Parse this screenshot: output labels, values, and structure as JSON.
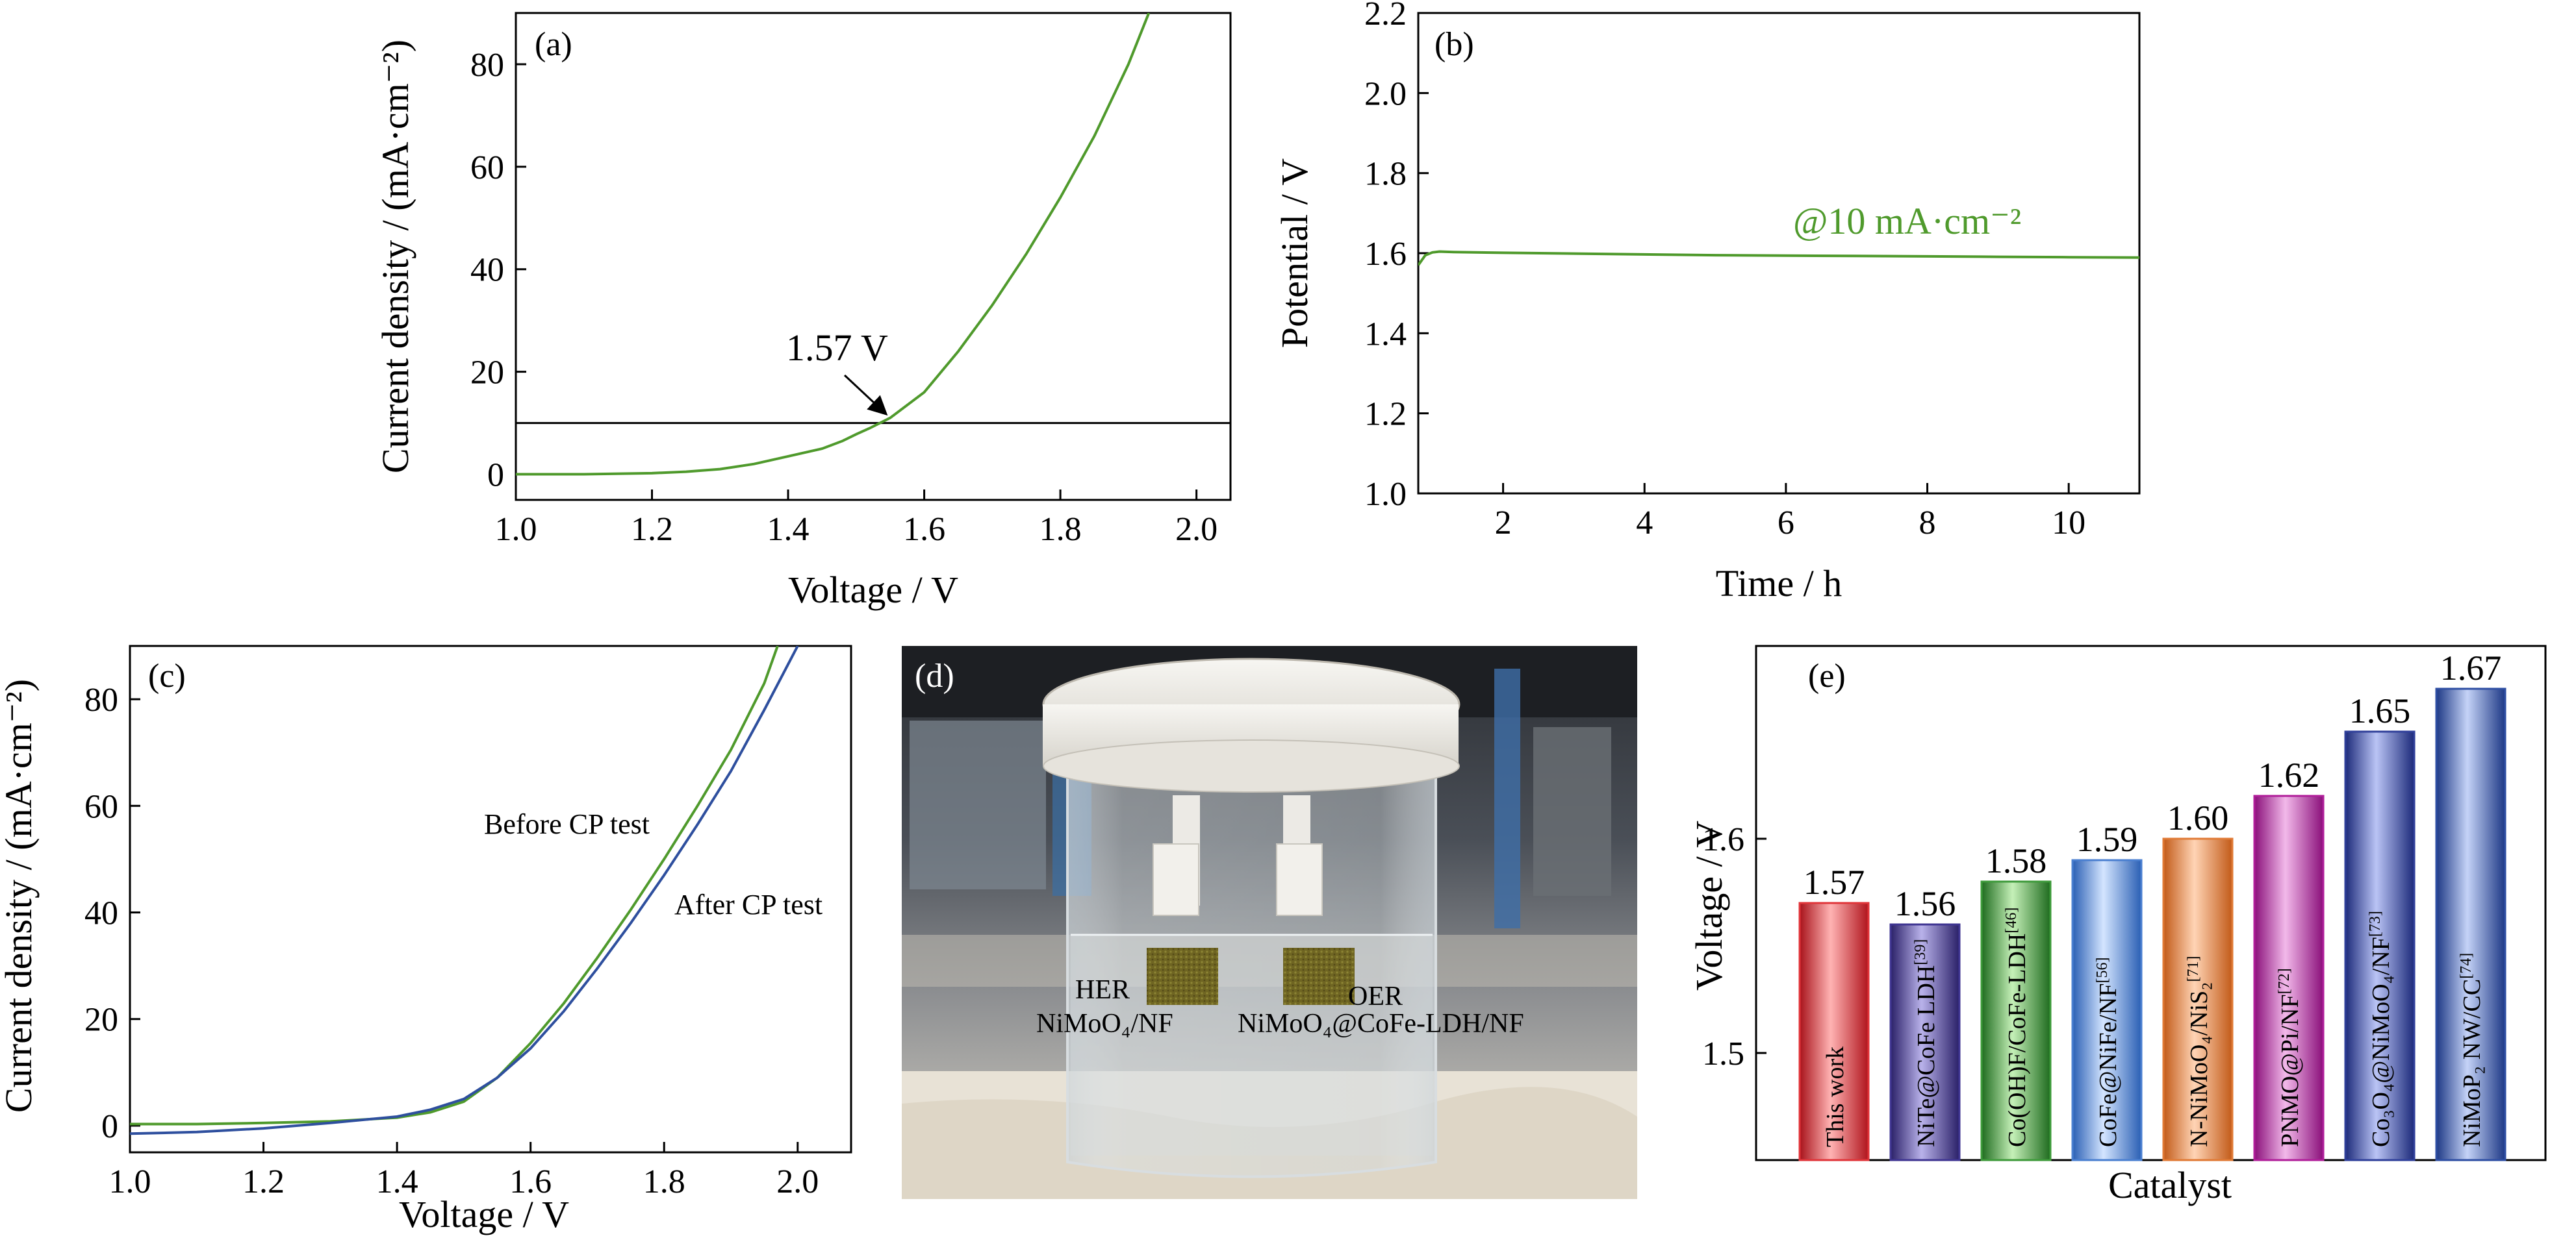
{
  "colors": {
    "green": "#4f9a2c",
    "blue": "#2e4f9e",
    "axis": "#000000"
  },
  "chart_data": [
    {
      "panel": "(a)",
      "type": "line",
      "xlabel": "Voltage / V",
      "ylabel": "Current density / (mA·cm⁻²)",
      "xlim": [
        1.0,
        2.05
      ],
      "ylim": [
        -5,
        90
      ],
      "xticks": [
        "1.0",
        "1.2",
        "1.4",
        "1.6",
        "1.8",
        "2.0"
      ],
      "yticks": [
        "0",
        "20",
        "40",
        "60",
        "80"
      ],
      "annotation": "1.57 V",
      "reference_line_y": 10,
      "series": [
        {
          "color": "#4f9a2c",
          "x": [
            1.0,
            1.1,
            1.2,
            1.25,
            1.3,
            1.35,
            1.4,
            1.45,
            1.48,
            1.5,
            1.52,
            1.55,
            1.6,
            1.65,
            1.7,
            1.75,
            1.8,
            1.85,
            1.9,
            1.93
          ],
          "y": [
            0,
            0,
            0.2,
            0.5,
            1.0,
            2.0,
            3.5,
            5.0,
            6.5,
            7.8,
            9.0,
            11.0,
            16.0,
            24.0,
            33.0,
            43.0,
            54.0,
            66.0,
            80.0,
            90.0
          ]
        }
      ]
    },
    {
      "panel": "(b)",
      "type": "line",
      "xlabel": "Time / h",
      "ylabel": "Potential / V",
      "xlim": [
        0.8,
        11
      ],
      "ylim": [
        1.0,
        2.2
      ],
      "xticks": [
        "2",
        "4",
        "6",
        "8",
        "10"
      ],
      "yticks": [
        "1.0",
        "1.2",
        "1.4",
        "1.6",
        "1.8",
        "2.0",
        "2.2"
      ],
      "annotation": "@10 mA·cm⁻²",
      "series": [
        {
          "color": "#4f9a2c",
          "x": [
            0.8,
            0.9,
            1.0,
            1.1,
            1.3,
            2,
            3,
            4,
            5,
            6,
            7,
            8,
            9,
            10,
            11
          ],
          "y": [
            1.57,
            1.595,
            1.602,
            1.604,
            1.603,
            1.601,
            1.599,
            1.597,
            1.595,
            1.594,
            1.593,
            1.592,
            1.591,
            1.59,
            1.589
          ]
        }
      ]
    },
    {
      "panel": "(c)",
      "type": "line",
      "xlabel": "Voltage / V",
      "ylabel": "Current density / (mA·cm⁻²)",
      "xlim": [
        1.0,
        2.08
      ],
      "ylim": [
        -5,
        90
      ],
      "xticks": [
        "1.0",
        "1.2",
        "1.4",
        "1.6",
        "1.8",
        "2.0"
      ],
      "yticks": [
        "0",
        "20",
        "40",
        "60",
        "80"
      ],
      "series": [
        {
          "name": "Before CP test",
          "color": "#4f9a2c",
          "x": [
            1.0,
            1.1,
            1.2,
            1.3,
            1.4,
            1.45,
            1.5,
            1.55,
            1.6,
            1.65,
            1.7,
            1.75,
            1.8,
            1.85,
            1.9,
            1.95,
            1.97
          ],
          "y": [
            0.3,
            0.3,
            0.5,
            0.8,
            1.5,
            2.5,
            4.5,
            9.0,
            15.5,
            23.0,
            31.5,
            40.5,
            50.0,
            60.0,
            70.5,
            83.0,
            90.0
          ]
        },
        {
          "name": "After CP test",
          "color": "#2e4f9e",
          "x": [
            1.0,
            1.1,
            1.2,
            1.3,
            1.4,
            1.45,
            1.5,
            1.55,
            1.6,
            1.65,
            1.7,
            1.75,
            1.8,
            1.85,
            1.9,
            1.95,
            2.0
          ],
          "y": [
            -1.5,
            -1.2,
            -0.5,
            0.5,
            1.7,
            3.0,
            5.0,
            9.0,
            14.5,
            21.5,
            29.5,
            38.0,
            47.0,
            56.5,
            66.5,
            78.0,
            90.0
          ]
        }
      ]
    },
    {
      "panel": "(e)",
      "type": "bar",
      "xlabel": "Catalyst",
      "ylabel": "Voltage / V",
      "ylim": [
        1.45,
        1.69
      ],
      "yticks": [
        "1.5",
        "1.6"
      ],
      "categories": [
        {
          "main": "This work",
          "sup": ""
        },
        {
          "main": "NiTe@CoFe LDH",
          "sup": "[39]"
        },
        {
          "main": "Co(OH)F/CoFe-LDH",
          "sup": "[46]"
        },
        {
          "main": "CoFe@NiFe/NF",
          "sup": "[56]"
        },
        {
          "main": "N-NiMoO₄/NiS₂",
          "sup": "[71]"
        },
        {
          "main": "PNMO@Pi/NF",
          "sup": "[72]"
        },
        {
          "main": "Co₃O₄@NiMoO₄/NF",
          "sup": "[73]"
        },
        {
          "main": "NiMoP₂ NW/CC",
          "sup": "[74]"
        }
      ],
      "values": [
        1.57,
        1.56,
        1.58,
        1.59,
        1.6,
        1.62,
        1.65,
        1.67
      ],
      "value_labels": [
        "1.57",
        "1.56",
        "1.58",
        "1.59",
        "1.60",
        "1.62",
        "1.65",
        "1.67"
      ],
      "bar_colors": [
        "#e0353a",
        "#3f3592",
        "#3d9a3a",
        "#4a7fd0",
        "#e07a35",
        "#b01e9a",
        "#2f3f9a",
        "#2e4ea3"
      ]
    }
  ],
  "photo": {
    "panel": "(d)",
    "her_label": "HER",
    "her_material": "NiMoO₄/NF",
    "oer_label": "OER",
    "oer_material": "NiMoO₄@CoFe-LDH/NF"
  }
}
